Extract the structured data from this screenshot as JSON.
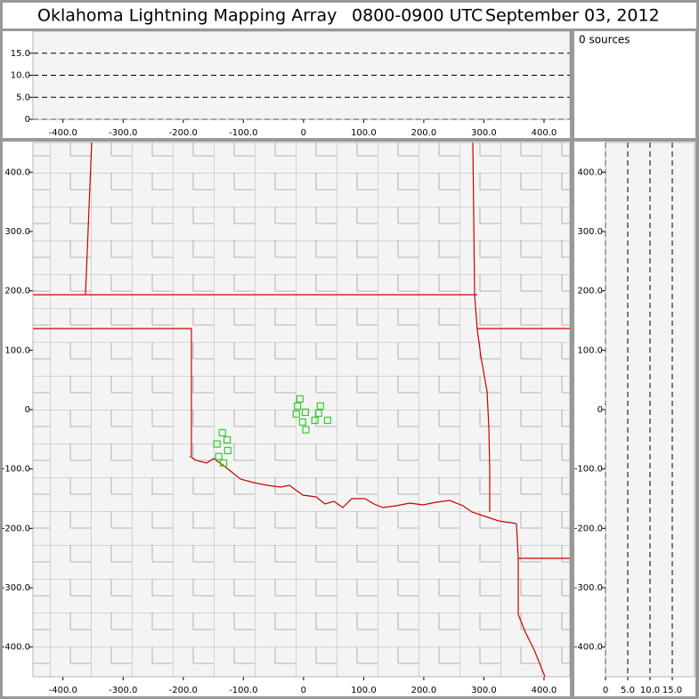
{
  "title": "Oklahoma Lightning Mapping Array",
  "time_range": "0800-0900 UTC",
  "date": "September 03, 2012",
  "source_count": "0 sources",
  "chart_data": [
    {
      "type": "scatter",
      "xlim": [
        -450,
        443
      ],
      "ylim": [
        0,
        20
      ],
      "xticks": [
        {
          "value": -400,
          "label": "-400.0"
        },
        {
          "value": -300,
          "label": "-300.0"
        },
        {
          "value": -200,
          "label": "-200.0"
        },
        {
          "value": -100,
          "label": "-100.0"
        },
        0,
        {
          "value": 100,
          "label": "100.0"
        },
        {
          "value": 200,
          "label": "200.0"
        },
        {
          "value": 300,
          "label": "300.0"
        },
        {
          "value": 400,
          "label": "400.0"
        }
      ],
      "yticks": [
        0,
        {
          "value": 5,
          "label": "5.0"
        },
        {
          "value": 10,
          "label": "10.0"
        },
        {
          "value": 15,
          "label": "15.0"
        }
      ],
      "grid": "y"
    },
    {
      "type": "scatter",
      "xlim": [
        -450,
        443
      ],
      "ylim": [
        -450,
        450
      ],
      "xticks": [
        {
          "value": -400,
          "label": "-400.0"
        },
        {
          "value": -300,
          "label": "-300.0"
        },
        {
          "value": -200,
          "label": "-200.0"
        },
        {
          "value": -100,
          "label": "-100.0"
        },
        0,
        {
          "value": 100,
          "label": "100.0"
        },
        {
          "value": 200,
          "label": "200.0"
        },
        {
          "value": 300,
          "label": "300.0"
        },
        {
          "value": 400,
          "label": "400.0"
        }
      ],
      "yticks": [
        {
          "value": -400,
          "label": "-400.0"
        },
        {
          "value": -300,
          "label": "-300.0"
        },
        {
          "value": -200,
          "label": "-200.0"
        },
        {
          "value": -100,
          "label": "-100.0"
        },
        0,
        {
          "value": 100,
          "label": "100.0"
        },
        {
          "value": 200,
          "label": "200.0"
        },
        {
          "value": 300,
          "label": "300.0"
        },
        {
          "value": 400,
          "label": "400.0"
        }
      ],
      "series": [
        {
          "color": "#33cc33",
          "marker": "open-square",
          "x": [
            -6,
            -10,
            28,
            3,
            -12,
            25,
            40,
            -1.5,
            19,
            4,
            -135,
            -127,
            -144,
            -126,
            -141,
            -133
          ],
          "y": [
            18,
            6,
            6,
            -4.5,
            -7.5,
            -6,
            -18,
            -21,
            -18,
            -34,
            -39,
            -51,
            -58,
            -69,
            -79,
            -90
          ]
        }
      ]
    },
    {
      "type": "scatter",
      "xlim": [
        0,
        20
      ],
      "ylim": [
        -450,
        450
      ],
      "xticks": [
        0,
        {
          "value": 5,
          "label": "5.0"
        },
        {
          "value": 10,
          "label": "10.0"
        },
        {
          "value": 15,
          "label": "15.0"
        }
      ],
      "yticks": [
        {
          "value": -400,
          "label": "-400.0"
        },
        {
          "value": -300,
          "label": "-300.0"
        },
        {
          "value": -200,
          "label": "-200.0"
        },
        {
          "value": -100,
          "label": "-100.0"
        },
        0,
        {
          "value": 100,
          "label": "100.0"
        },
        {
          "value": 200,
          "label": "200.0"
        },
        {
          "value": 300,
          "label": "300.0"
        },
        {
          "value": 400,
          "label": "400.0"
        }
      ],
      "grid": "x"
    }
  ]
}
